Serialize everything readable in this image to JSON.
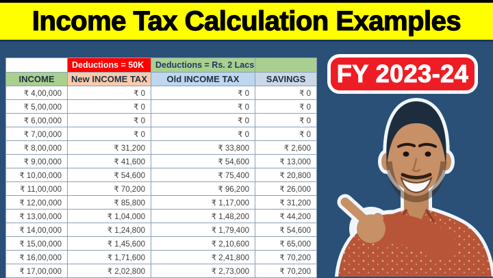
{
  "title": "Income Tax Calculation Examples",
  "fy_badge": "FY 2023-24",
  "table": {
    "group_headers": {
      "income_spacer": "",
      "new_regime": "Deductions = 50K",
      "old_regime": "Deductions = Rs. 2 Lacs",
      "savings_spacer": ""
    },
    "columns": [
      "INCOME",
      "New INCOME TAX",
      "Old INCOME TAX",
      "SAVINGS"
    ],
    "rows": [
      [
        "₹ 4,00,000",
        "₹ 0",
        "₹ 0",
        "₹ 0"
      ],
      [
        "₹ 5,00,000",
        "₹ 0",
        "₹ 0",
        "₹ 0"
      ],
      [
        "₹ 6,00,000",
        "₹ 0",
        "₹ 0",
        "₹ 0"
      ],
      [
        "₹ 7,00,000",
        "₹ 0",
        "₹ 0",
        "₹ 0"
      ],
      [
        "₹ 8,00,000",
        "₹ 31,200",
        "₹ 33,800",
        "₹ 2,600"
      ],
      [
        "₹ 9,00,000",
        "₹ 41,600",
        "₹ 54,600",
        "₹ 13,000"
      ],
      [
        "₹ 10,00,000",
        "₹ 54,600",
        "₹ 75,400",
        "₹ 20,800"
      ],
      [
        "₹ 11,00,000",
        "₹ 70,200",
        "₹ 96,200",
        "₹ 26,000"
      ],
      [
        "₹ 12,00,000",
        "₹ 85,800",
        "₹ 1,17,000",
        "₹ 31,200"
      ],
      [
        "₹ 13,00,000",
        "₹ 1,04,000",
        "₹ 1,48,200",
        "₹ 44,200"
      ],
      [
        "₹ 14,00,000",
        "₹ 1,24,800",
        "₹ 1,79,400",
        "₹ 54,600"
      ],
      [
        "₹ 15,00,000",
        "₹ 1,45,600",
        "₹ 2,10,600",
        "₹ 65,000"
      ],
      [
        "₹ 16,00,000",
        "₹ 1,71,600",
        "₹ 2,41,800",
        "₹ 70,200"
      ],
      [
        "₹ 17,00,000",
        "₹ 2,02,800",
        "₹ 2,73,000",
        "₹ 70,200"
      ]
    ]
  },
  "colors": {
    "background_navy": "#2a5078",
    "title_yellow": "#ffff00",
    "header_red": "#ff0000",
    "header_green": "#a9d08e",
    "header_peach": "#f8cbad",
    "header_blue": "#bdd7ee",
    "badge_red": "#ee1c24"
  }
}
